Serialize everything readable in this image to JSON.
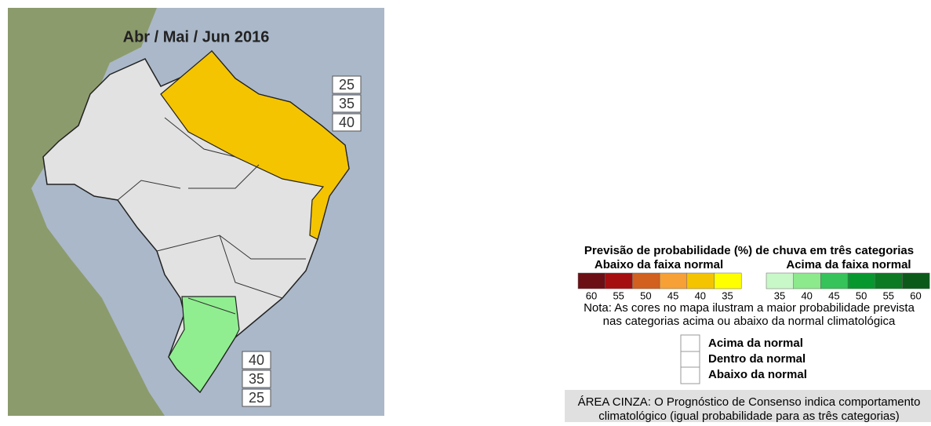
{
  "map": {
    "title": "Abr / Mai / Jun 2016",
    "north_box": [
      "25",
      "35",
      "40"
    ],
    "south_box": [
      "40",
      "35",
      "25"
    ]
  },
  "legend": {
    "title": "Previsão de probabilidade (%) de chuva em três categorias",
    "below_label": "Abaixo da faixa normal",
    "above_label": "Acima da faixa normal",
    "below_scale": [
      {
        "value": "60",
        "color": "#6b0f14"
      },
      {
        "value": "55",
        "color": "#a50f0f"
      },
      {
        "value": "50",
        "color": "#d2601e"
      },
      {
        "value": "45",
        "color": "#f7a035"
      },
      {
        "value": "40",
        "color": "#f5c400"
      },
      {
        "value": "35",
        "color": "#ffff00"
      }
    ],
    "above_scale": [
      {
        "value": "35",
        "color": "#c8f7c8"
      },
      {
        "value": "40",
        "color": "#8ce98c"
      },
      {
        "value": "45",
        "color": "#35c35a"
      },
      {
        "value": "50",
        "color": "#06982e"
      },
      {
        "value": "55",
        "color": "#0b7a23"
      },
      {
        "value": "60",
        "color": "#0c5a1a"
      }
    ],
    "note": [
      "Nota: As cores no mapa ilustram a maior probabilidade prevista",
      "nas categorias acima ou abaixo da normal climatológica"
    ],
    "categories": [
      "Acima da normal",
      "Dentro da normal",
      "Abaixo da normal"
    ],
    "gray_area": [
      "ÁREA CINZA: O Prognóstico de Consenso indica comportamento",
      "climatológico (igual probabilidade para as três categorias)"
    ]
  }
}
